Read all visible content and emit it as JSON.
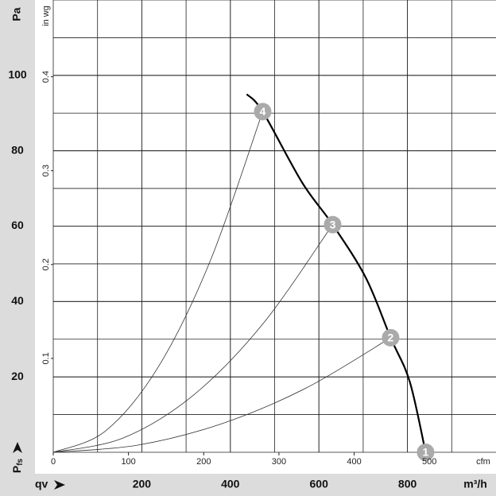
{
  "chart_data": {
    "type": "line",
    "x_label": "qv",
    "x_unit": "m³/h",
    "y_label": {
      "main": "P",
      "sub": "fs"
    },
    "y_unit": "Pa",
    "xlim": [
      0,
      1000
    ],
    "xticks": [
      200,
      400,
      600,
      800
    ],
    "ylim": [
      0,
      120
    ],
    "yticks": [
      20,
      40,
      60,
      80,
      100
    ],
    "x2_unit": "cfm",
    "x2lim": [
      0,
      588.6
    ],
    "x2ticks": [
      0,
      100,
      200,
      300,
      400,
      500
    ],
    "y2_unit": "in wg",
    "y2lim": [
      0,
      0.4818
    ],
    "y2ticks": [
      0.1,
      0.2,
      0.3,
      0.4
    ],
    "grid": true,
    "series": [
      {
        "color": "#000000",
        "line_width": 2.2,
        "x": [
          437,
          473,
          562,
          631,
          706,
          762,
          805,
          841
        ],
        "values": [
          95,
          90.4,
          71.6,
          60.4,
          46.3,
          30.4,
          18.8,
          0
        ]
      },
      {
        "color": "#333333",
        "line_width": 0.8,
        "x": [
          0,
          118,
          237,
          355,
          473
        ],
        "values": [
          0,
          5.65,
          22.6,
          50.9,
          90.4
        ]
      },
      {
        "color": "#333333",
        "line_width": 0.8,
        "x": [
          0,
          158,
          316,
          473,
          631
        ],
        "values": [
          0,
          3.8,
          15.1,
          34,
          60.4
        ]
      },
      {
        "color": "#333333",
        "line_width": 0.8,
        "x": [
          0,
          191,
          381,
          572,
          762
        ],
        "values": [
          0,
          1.9,
          7.6,
          17.1,
          30.4
        ]
      }
    ],
    "points": [
      {
        "label": "1",
        "x": 841,
        "y": 0
      },
      {
        "label": "2",
        "x": 762,
        "y": 30.4
      },
      {
        "label": "3",
        "x": 631,
        "y": 60.4
      },
      {
        "label": "4",
        "x": 473,
        "y": 90.4
      }
    ],
    "point_color": "#aaaaaa"
  }
}
